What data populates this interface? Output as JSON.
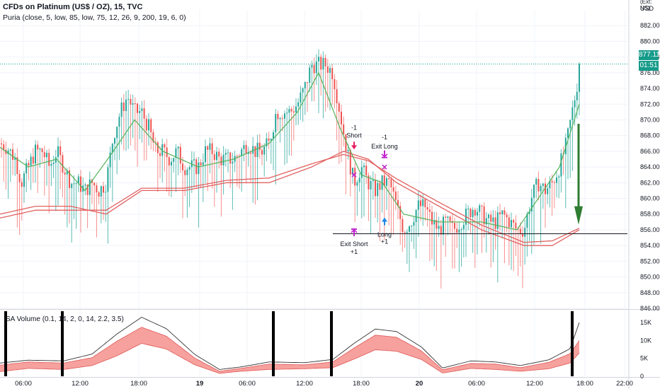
{
  "header": {
    "title": "CFDs on Platinum (US$ / OZ), 15, TVC",
    "indicator": "Puria (close, 5, low, 85, low, 75, 12, 26, 9, 200, 19, 6, 0)"
  },
  "price_axis": {
    "currency": "USD",
    "scale_note": "(Ext: NS)",
    "last_price": "877.11",
    "timer": "01:51"
  },
  "subpane": {
    "title": "SA Volume (0.1, 14, 2, 0, 14, 2.2, 3.5)"
  },
  "colors": {
    "up": "#26a69a",
    "down": "#ef5350",
    "ma_slow": "#e05858",
    "ma_fast": "#4caf50",
    "signal_short": "#e91e63",
    "signal_long": "#1e88e5",
    "exit_marker": "#c020d0",
    "big_arrow": "#2e7d32",
    "band_fill": "#f4908c",
    "last_price_line": "#159b8a"
  },
  "chart_data": [
    {
      "type": "candlestick",
      "title": "CFDs on Platinum (US$ / OZ), 15, TVC",
      "y_unit": "USD",
      "ylim": [
        846,
        884
      ],
      "y_ticks": [
        846,
        848,
        850,
        852,
        854,
        856,
        858,
        860,
        862,
        864,
        866,
        868,
        870,
        872,
        874,
        876,
        878,
        880,
        882
      ],
      "x_tick_labels": [
        "06:00",
        "12:00",
        "18:00",
        "19",
        "06:00",
        "12:00",
        "18:00",
        "20",
        "06:00",
        "12:00",
        "18:00",
        "22:00"
      ],
      "close_path": [
        [
          0,
          867
        ],
        [
          10,
          866.5
        ],
        [
          22,
          865
        ],
        [
          30,
          862
        ],
        [
          40,
          864
        ],
        [
          50,
          866
        ],
        [
          60,
          866
        ],
        [
          70,
          864
        ],
        [
          80,
          866
        ],
        [
          90,
          864
        ],
        [
          100,
          862
        ],
        [
          110,
          862
        ],
        [
          120,
          861
        ],
        [
          130,
          862
        ],
        [
          140,
          861
        ],
        [
          150,
          862
        ],
        [
          160,
          868
        ],
        [
          170,
          871
        ],
        [
          180,
          873
        ],
        [
          190,
          871
        ],
        [
          200,
          871
        ],
        [
          210,
          869
        ],
        [
          220,
          866
        ],
        [
          230,
          866
        ],
        [
          240,
          865
        ],
        [
          250,
          866
        ],
        [
          260,
          864
        ],
        [
          270,
          864
        ],
        [
          280,
          864
        ],
        [
          290,
          866
        ],
        [
          300,
          866
        ],
        [
          310,
          865
        ],
        [
          320,
          865
        ],
        [
          330,
          865
        ],
        [
          340,
          866
        ],
        [
          350,
          867
        ],
        [
          360,
          866
        ],
        [
          370,
          866
        ],
        [
          380,
          867
        ],
        [
          390,
          871
        ],
        [
          400,
          871
        ],
        [
          410,
          871
        ],
        [
          420,
          872
        ],
        [
          430,
          874
        ],
        [
          440,
          877
        ],
        [
          450,
          877
        ],
        [
          460,
          877
        ],
        [
          470,
          876
        ],
        [
          480,
          871
        ],
        [
          490,
          866
        ],
        [
          500,
          862
        ],
        [
          510,
          864
        ],
        [
          520,
          862
        ],
        [
          530,
          861
        ],
        [
          540,
          862
        ],
        [
          550,
          862
        ],
        [
          560,
          859
        ],
        [
          570,
          856
        ],
        [
          580,
          857
        ],
        [
          590,
          859
        ],
        [
          600,
          859
        ],
        [
          610,
          857
        ],
        [
          620,
          856
        ],
        [
          630,
          857
        ],
        [
          640,
          856
        ],
        [
          650,
          857
        ],
        [
          660,
          858
        ],
        [
          670,
          859
        ],
        [
          680,
          858
        ],
        [
          690,
          857
        ],
        [
          700,
          857
        ],
        [
          710,
          858
        ],
        [
          720,
          857
        ],
        [
          730,
          856
        ],
        [
          740,
          856
        ],
        [
          750,
          860
        ],
        [
          760,
          862
        ],
        [
          770,
          861
        ],
        [
          780,
          862
        ],
        [
          790,
          864
        ],
        [
          800,
          867
        ],
        [
          810,
          872
        ],
        [
          820,
          877.11
        ]
      ],
      "last_price": 877.11,
      "series": [
        {
          "name": "ma_slow",
          "color": "#e05858",
          "points": [
            [
              0,
              858
            ],
            [
              50,
              859
            ],
            [
              100,
              859
            ],
            [
              150,
              858
            ],
            [
              200,
              861
            ],
            [
              260,
              861
            ],
            [
              320,
              862
            ],
            [
              380,
              862
            ],
            [
              440,
              864
            ],
            [
              485,
              866
            ],
            [
              520,
              865
            ],
            [
              560,
              862
            ],
            [
              620,
              859
            ],
            [
              680,
              856
            ],
            [
              740,
              854
            ],
            [
              780,
              854
            ],
            [
              818,
              856
            ]
          ]
        },
        {
          "name": "ma_slow_2",
          "color": "#e05858",
          "points": [
            [
              0,
              857.5
            ],
            [
              50,
              858.5
            ],
            [
              100,
              858.5
            ],
            [
              150,
              858.5
            ],
            [
              200,
              861.3
            ],
            [
              260,
              861.3
            ],
            [
              320,
              862.3
            ],
            [
              380,
              862.6
            ],
            [
              440,
              864.4
            ],
            [
              485,
              865.6
            ],
            [
              520,
              864.8
            ],
            [
              560,
              862.5
            ],
            [
              620,
              859.5
            ],
            [
              680,
              856.6
            ],
            [
              740,
              854.4
            ],
            [
              780,
              854.6
            ],
            [
              818,
              856.2
            ]
          ]
        },
        {
          "name": "ma_fast",
          "color": "#4caf50",
          "points": [
            [
              0,
              866.5
            ],
            [
              40,
              864
            ],
            [
              80,
              865
            ],
            [
              120,
              861
            ],
            [
              160,
              866
            ],
            [
              190,
              870
            ],
            [
              230,
              866
            ],
            [
              280,
              864
            ],
            [
              330,
              865
            ],
            [
              380,
              867
            ],
            [
              420,
              871
            ],
            [
              450,
              876
            ],
            [
              480,
              869
            ],
            [
              510,
              863
            ],
            [
              540,
              862
            ],
            [
              570,
              858
            ],
            [
              620,
              857
            ],
            [
              680,
              857
            ],
            [
              730,
              856
            ],
            [
              760,
              860
            ],
            [
              790,
              864
            ],
            [
              818,
              872
            ]
          ]
        }
      ],
      "hline": 855.5,
      "annotations": [
        {
          "text": "-1",
          "x": 500,
          "y": 869,
          "color": "#131722"
        },
        {
          "text": "Short",
          "x": 500,
          "y": 868,
          "color": "#131722"
        },
        {
          "text": "-1",
          "x": 543,
          "y": 867.8,
          "color": "#131722"
        },
        {
          "text": "Exit Long",
          "x": 543,
          "y": 866.6,
          "color": "#131722"
        },
        {
          "text": "Long",
          "x": 543,
          "y": 855.4,
          "color": "#131722"
        },
        {
          "text": "+1",
          "x": 543,
          "y": 854.5,
          "color": "#131722"
        },
        {
          "text": "Exit Short",
          "x": 500,
          "y": 854.2,
          "color": "#131722"
        },
        {
          "text": "+1",
          "x": 500,
          "y": 853.2,
          "color": "#131722"
        }
      ],
      "markers": [
        {
          "kind": "arrow-down",
          "x": 500,
          "y": 866.5,
          "color": "#e91e63"
        },
        {
          "kind": "exit-down",
          "x": 543,
          "y": 865.3,
          "color": "#c020d0"
        },
        {
          "kind": "arrow-up",
          "x": 543,
          "y": 857.3,
          "color": "#1e88e5"
        },
        {
          "kind": "exit-up",
          "x": 500,
          "y": 856,
          "color": "#c020d0"
        },
        {
          "kind": "cross",
          "x": 500,
          "y": 863,
          "color": "#c020d0"
        },
        {
          "kind": "cross",
          "x": 543,
          "y": 864,
          "color": "#c020d0"
        },
        {
          "kind": "big-arrow-down",
          "x": 817,
          "y": 869.5,
          "to": 856.3,
          "color": "#2e7d32"
        }
      ]
    },
    {
      "type": "area",
      "title": "SA Volume (0.1, 14, 2, 0, 14, 2.2, 3.5)",
      "ylim": [
        0,
        17000
      ],
      "y_ticks": [
        0,
        5000,
        10000,
        15000
      ],
      "y_tick_labels": [
        "0",
        "5K",
        "10K",
        "15K"
      ],
      "series": [
        {
          "name": "band_upper",
          "points": [
            [
              0,
              3100
            ],
            [
              40,
              4000
            ],
            [
              90,
              3700
            ],
            [
              130,
              5200
            ],
            [
              165,
              9800
            ],
            [
              200,
              13700
            ],
            [
              235,
              11200
            ],
            [
              275,
              5100
            ],
            [
              310,
              1400
            ],
            [
              340,
              2200
            ],
            [
              380,
              3400
            ],
            [
              430,
              3200
            ],
            [
              470,
              4000
            ],
            [
              500,
              7900
            ],
            [
              530,
              11500
            ],
            [
              560,
              10900
            ],
            [
              595,
              7100
            ],
            [
              625,
              1800
            ],
            [
              665,
              3600
            ],
            [
              700,
              3400
            ],
            [
              735,
              2400
            ],
            [
              775,
              3900
            ],
            [
              805,
              6300
            ],
            [
              818,
              10000
            ]
          ]
        },
        {
          "name": "band_lower",
          "points": [
            [
              0,
              1300
            ],
            [
              40,
              2200
            ],
            [
              90,
              1900
            ],
            [
              130,
              3000
            ],
            [
              165,
              5700
            ],
            [
              200,
              9200
            ],
            [
              235,
              7600
            ],
            [
              275,
              3200
            ],
            [
              310,
              800
            ],
            [
              340,
              1400
            ],
            [
              380,
              1900
            ],
            [
              430,
              2100
            ],
            [
              470,
              2400
            ],
            [
              500,
              4800
            ],
            [
              530,
              7400
            ],
            [
              560,
              7000
            ],
            [
              595,
              4700
            ],
            [
              625,
              900
            ],
            [
              665,
              2200
            ],
            [
              700,
              1900
            ],
            [
              735,
              1400
            ],
            [
              775,
              2100
            ],
            [
              805,
              3700
            ],
            [
              818,
              6500
            ]
          ]
        },
        {
          "name": "envelope",
          "points": [
            [
              0,
              3700
            ],
            [
              40,
              4500
            ],
            [
              90,
              4300
            ],
            [
              130,
              6200
            ],
            [
              165,
              11800
            ],
            [
              200,
              16500
            ],
            [
              235,
              13300
            ],
            [
              275,
              6100
            ],
            [
              310,
              1900
            ],
            [
              340,
              2600
            ],
            [
              380,
              4000
            ],
            [
              430,
              3800
            ],
            [
              470,
              4700
            ],
            [
              500,
              9200
            ],
            [
              530,
              13200
            ],
            [
              560,
              12500
            ],
            [
              595,
              8200
            ],
            [
              625,
              2300
            ],
            [
              665,
              4300
            ],
            [
              700,
              4000
            ],
            [
              735,
              3000
            ],
            [
              775,
              4600
            ],
            [
              805,
              7700
            ],
            [
              818,
              15000
            ]
          ]
        }
      ],
      "period_markers_x": [
        8,
        88,
        386,
        468,
        808
      ]
    }
  ]
}
